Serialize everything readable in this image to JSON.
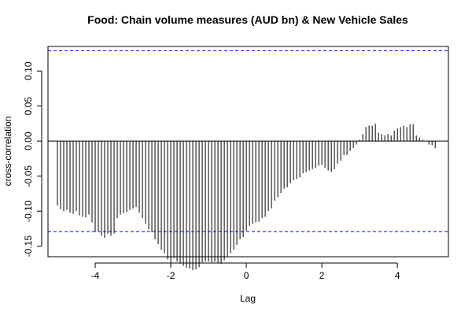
{
  "chart_data": {
    "type": "bar",
    "title": "Food: Chain volume measures (AUD bn) & New Vehicle Sales",
    "xlabel": "Lag",
    "ylabel": "cross-correlation",
    "xlim": [
      -5.25,
      5.35
    ],
    "ylim": [
      -0.165,
      0.135
    ],
    "x_ticks": [
      -4,
      -2,
      0,
      2,
      4
    ],
    "y_ticks": [
      -0.15,
      -0.1,
      -0.05,
      0.0,
      0.05,
      0.1
    ],
    "x_tick_labels": [
      "-4",
      "-2",
      "0",
      "2",
      "4"
    ],
    "y_tick_labels": [
      "-0.15",
      "-0.10",
      "-0.05",
      "0.00",
      "0.05",
      "0.10"
    ],
    "confidence_bounds": [
      0.129,
      -0.129
    ],
    "confidence_color": "#0000ff",
    "lags": [
      -5.0,
      -4.9167,
      -4.8333,
      -4.75,
      -4.6667,
      -4.5833,
      -4.5,
      -4.4167,
      -4.3333,
      -4.25,
      -4.1667,
      -4.0833,
      -4.0,
      -3.9167,
      -3.8333,
      -3.75,
      -3.6667,
      -3.5833,
      -3.5,
      -3.4167,
      -3.3333,
      -3.25,
      -3.1667,
      -3.0833,
      -3.0,
      -2.9167,
      -2.8333,
      -2.75,
      -2.6667,
      -2.5833,
      -2.5,
      -2.4167,
      -2.3333,
      -2.25,
      -2.1667,
      -2.0833,
      -2.0,
      -1.9167,
      -1.8333,
      -1.75,
      -1.6667,
      -1.5833,
      -1.5,
      -1.4167,
      -1.3333,
      -1.25,
      -1.1667,
      -1.0833,
      -1.0,
      -0.9167,
      -0.8333,
      -0.75,
      -0.6667,
      -0.5833,
      -0.5,
      -0.4167,
      -0.3333,
      -0.25,
      -0.1667,
      -0.0833,
      0.0,
      0.0833,
      0.1667,
      0.25,
      0.3333,
      0.4167,
      0.5,
      0.5833,
      0.6667,
      0.75,
      0.8333,
      0.9167,
      1.0,
      1.0833,
      1.1667,
      1.25,
      1.3333,
      1.4167,
      1.5,
      1.5833,
      1.6667,
      1.75,
      1.8333,
      1.9167,
      2.0,
      2.0833,
      2.1667,
      2.25,
      2.3333,
      2.4167,
      2.5,
      2.5833,
      2.6667,
      2.75,
      2.8333,
      2.9167,
      3.0,
      3.0833,
      3.1667,
      3.25,
      3.3333,
      3.4167,
      3.5,
      3.5833,
      3.6667,
      3.75,
      3.8333,
      3.9167,
      4.0,
      4.0833,
      4.1667,
      4.25,
      4.3333,
      4.4167,
      4.5,
      4.5833,
      4.6667,
      4.75,
      4.8333,
      4.9167,
      5.0
    ],
    "values": [
      -0.092,
      -0.097,
      -0.1,
      -0.098,
      -0.102,
      -0.104,
      -0.1,
      -0.106,
      -0.108,
      -0.109,
      -0.105,
      -0.116,
      -0.13,
      -0.128,
      -0.135,
      -0.138,
      -0.132,
      -0.135,
      -0.132,
      -0.11,
      -0.105,
      -0.103,
      -0.101,
      -0.098,
      -0.096,
      -0.094,
      -0.102,
      -0.11,
      -0.118,
      -0.126,
      -0.13,
      -0.14,
      -0.147,
      -0.155,
      -0.16,
      -0.169,
      -0.175,
      -0.167,
      -0.172,
      -0.175,
      -0.178,
      -0.181,
      -0.182,
      -0.184,
      -0.183,
      -0.18,
      -0.173,
      -0.172,
      -0.172,
      -0.173,
      -0.172,
      -0.174,
      -0.175,
      -0.17,
      -0.165,
      -0.16,
      -0.155,
      -0.148,
      -0.14,
      -0.137,
      -0.128,
      -0.121,
      -0.118,
      -0.116,
      -0.115,
      -0.11,
      -0.108,
      -0.1,
      -0.096,
      -0.085,
      -0.08,
      -0.074,
      -0.068,
      -0.066,
      -0.06,
      -0.056,
      -0.054,
      -0.052,
      -0.046,
      -0.044,
      -0.042,
      -0.04,
      -0.038,
      -0.035,
      -0.034,
      -0.038,
      -0.042,
      -0.044,
      -0.04,
      -0.032,
      -0.028,
      -0.02,
      -0.02,
      -0.014,
      -0.01,
      -0.005,
      0.002,
      0.01,
      0.02,
      0.022,
      0.022,
      0.025,
      0.012,
      0.01,
      0.008,
      0.01,
      0.008,
      0.015,
      0.018,
      0.02,
      0.022,
      0.02,
      0.024,
      0.024,
      0.008,
      0.005,
      0.002,
      0.0,
      -0.005,
      -0.006,
      -0.01
    ]
  }
}
